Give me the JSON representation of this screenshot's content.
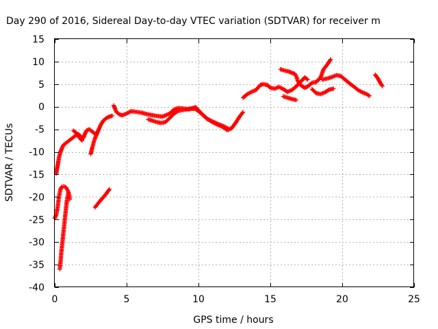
{
  "chart_data": {
    "type": "scatter",
    "title": "Day 290 of 2016, Sidereal Day-to-day VTEC variation (SDTVAR) for receiver m",
    "xlabel": "GPS time / hours",
    "ylabel": "SDTVAR / TECUs",
    "xlim": [
      0,
      25
    ],
    "ylim": [
      -40,
      15
    ],
    "xticks": [
      0,
      5,
      10,
      15,
      20,
      25
    ],
    "yticks": [
      -40,
      -35,
      -30,
      -25,
      -20,
      -15,
      -10,
      -5,
      0,
      5,
      10,
      15
    ],
    "grid": true,
    "marker": "plus",
    "color": "#ff0000",
    "series": [
      {
        "points": [
          [
            0.0,
            -24.7
          ],
          [
            0.1,
            -24.0
          ],
          [
            0.2,
            -22.3
          ],
          [
            0.3,
            -19.8
          ],
          [
            0.4,
            -18.3
          ],
          [
            0.5,
            -17.7
          ],
          [
            0.6,
            -17.6
          ],
          [
            0.7,
            -17.7
          ],
          [
            0.8,
            -18.0
          ],
          [
            0.9,
            -18.5
          ],
          [
            1.0,
            -19.5
          ],
          [
            1.05,
            -20.5
          ]
        ]
      },
      {
        "points": [
          [
            0.35,
            -36.0
          ],
          [
            0.4,
            -34.5
          ],
          [
            0.45,
            -32.5
          ],
          [
            0.5,
            -31.0
          ],
          [
            0.55,
            -29.5
          ],
          [
            0.6,
            -28.0
          ],
          [
            0.65,
            -26.5
          ],
          [
            0.7,
            -25.0
          ],
          [
            0.75,
            -23.5
          ],
          [
            0.8,
            -22.0
          ],
          [
            0.85,
            -20.8
          ],
          [
            0.9,
            -19.8
          ],
          [
            0.95,
            -19.0
          ]
        ]
      },
      {
        "points": [
          [
            2.8,
            -22.3
          ],
          [
            3.0,
            -21.5
          ],
          [
            3.2,
            -20.7
          ],
          [
            3.4,
            -20.0
          ],
          [
            3.6,
            -19.2
          ],
          [
            3.8,
            -18.3
          ]
        ]
      },
      {
        "points": [
          [
            0.1,
            -14.8
          ],
          [
            0.2,
            -13.0
          ],
          [
            0.3,
            -11.2
          ],
          [
            0.4,
            -10.0
          ],
          [
            0.5,
            -9.2
          ],
          [
            0.6,
            -8.5
          ],
          [
            0.8,
            -8.0
          ],
          [
            1.0,
            -7.5
          ],
          [
            1.2,
            -7.0
          ],
          [
            1.4,
            -6.5
          ],
          [
            1.6,
            -6.0
          ],
          [
            1.8,
            -6.5
          ],
          [
            1.9,
            -7.3
          ],
          [
            2.0,
            -6.8
          ],
          [
            2.1,
            -6.0
          ],
          [
            2.2,
            -5.3
          ],
          [
            2.4,
            -5.0
          ],
          [
            2.6,
            -5.5
          ],
          [
            2.8,
            -6.0
          ],
          [
            3.0,
            -5.5
          ]
        ]
      },
      {
        "points": [
          [
            1.3,
            -5.3
          ],
          [
            1.5,
            -5.8
          ],
          [
            1.7,
            -6.8
          ],
          [
            1.9,
            -7.5
          ]
        ]
      },
      {
        "points": [
          [
            2.5,
            -10.5
          ],
          [
            2.6,
            -9.2
          ],
          [
            2.7,
            -8.0
          ],
          [
            2.8,
            -7.0
          ],
          [
            3.0,
            -5.5
          ],
          [
            3.2,
            -4.0
          ],
          [
            3.4,
            -3.0
          ],
          [
            3.6,
            -2.5
          ],
          [
            3.8,
            -2.2
          ],
          [
            4.0,
            -2.0
          ]
        ]
      },
      {
        "points": [
          [
            4.1,
            0.3
          ],
          [
            4.2,
            -0.5
          ],
          [
            4.3,
            -1.2
          ],
          [
            4.5,
            -1.7
          ],
          [
            4.7,
            -1.9
          ],
          [
            5.0,
            -1.5
          ],
          [
            5.3,
            -1.0
          ],
          [
            5.6,
            -1.1
          ],
          [
            6.0,
            -1.3
          ],
          [
            6.5,
            -1.7
          ],
          [
            7.0,
            -2.0
          ],
          [
            7.5,
            -2.2
          ],
          [
            8.0,
            -1.5
          ],
          [
            8.3,
            -0.6
          ],
          [
            8.6,
            -0.3
          ],
          [
            9.0,
            -0.4
          ],
          [
            9.3,
            -0.6
          ],
          [
            9.6,
            -0.3
          ],
          [
            9.8,
            -0.1
          ],
          [
            10.0,
            -0.8
          ],
          [
            10.3,
            -1.8
          ],
          [
            10.6,
            -2.6
          ],
          [
            10.9,
            -3.3
          ],
          [
            11.2,
            -3.8
          ],
          [
            11.5,
            -4.2
          ],
          [
            11.8,
            -4.7
          ],
          [
            12.0,
            -5.2
          ],
          [
            12.3,
            -4.8
          ],
          [
            12.6,
            -3.5
          ],
          [
            12.9,
            -2.0
          ],
          [
            13.1,
            -1.2
          ]
        ]
      },
      {
        "points": [
          [
            6.5,
            -2.8
          ],
          [
            6.8,
            -3.1
          ],
          [
            7.1,
            -3.4
          ],
          [
            7.4,
            -3.6
          ],
          [
            7.7,
            -3.4
          ],
          [
            8.0,
            -2.5
          ],
          [
            8.3,
            -1.5
          ],
          [
            8.6,
            -0.9
          ],
          [
            9.0,
            -0.7
          ],
          [
            9.4,
            -0.4
          ],
          [
            9.8,
            -0.5
          ],
          [
            10.2,
            -1.5
          ],
          [
            10.6,
            -2.7
          ],
          [
            11.0,
            -3.3
          ],
          [
            11.4,
            -3.9
          ],
          [
            11.8,
            -4.4
          ],
          [
            12.1,
            -4.9
          ]
        ]
      },
      {
        "points": [
          [
            13.1,
            2.0
          ],
          [
            13.4,
            2.8
          ],
          [
            13.7,
            3.3
          ],
          [
            14.0,
            3.7
          ],
          [
            14.3,
            4.8
          ],
          [
            14.5,
            5.0
          ],
          [
            14.8,
            4.8
          ],
          [
            15.0,
            4.2
          ],
          [
            15.3,
            4.0
          ],
          [
            15.6,
            4.4
          ],
          [
            15.9,
            3.9
          ],
          [
            16.2,
            3.3
          ],
          [
            16.5,
            3.7
          ],
          [
            16.8,
            4.5
          ],
          [
            17.1,
            5.5
          ],
          [
            17.4,
            6.5
          ],
          [
            17.6,
            6.0
          ]
        ]
      },
      {
        "points": [
          [
            15.7,
            8.3
          ],
          [
            16.0,
            8.0
          ],
          [
            16.3,
            7.8
          ],
          [
            16.5,
            7.5
          ],
          [
            16.7,
            7.3
          ],
          [
            16.8,
            6.8
          ],
          [
            16.9,
            5.8
          ],
          [
            17.1,
            4.8
          ],
          [
            17.4,
            4.2
          ],
          [
            17.6,
            4.5
          ],
          [
            17.9,
            5.3
          ],
          [
            18.2,
            5.5
          ],
          [
            18.5,
            6.5
          ],
          [
            18.7,
            8.3
          ],
          [
            19.0,
            9.5
          ],
          [
            19.2,
            10.5
          ]
        ]
      },
      {
        "points": [
          [
            15.9,
            2.3
          ],
          [
            16.2,
            2.0
          ],
          [
            16.5,
            1.7
          ],
          [
            16.8,
            1.5
          ]
        ]
      },
      {
        "points": [
          [
            17.9,
            3.9
          ],
          [
            18.2,
            3.0
          ],
          [
            18.5,
            2.8
          ],
          [
            18.8,
            3.2
          ],
          [
            19.1,
            3.8
          ],
          [
            19.4,
            4.0
          ]
        ]
      },
      {
        "points": [
          [
            18.6,
            6.0
          ],
          [
            19.0,
            6.3
          ],
          [
            19.3,
            6.6
          ],
          [
            19.6,
            7.0
          ],
          [
            19.9,
            6.8
          ],
          [
            20.2,
            6.0
          ],
          [
            20.5,
            5.2
          ],
          [
            20.8,
            4.5
          ],
          [
            21.1,
            3.7
          ],
          [
            21.4,
            3.2
          ],
          [
            21.7,
            2.8
          ],
          [
            21.9,
            2.4
          ]
        ]
      },
      {
        "points": [
          [
            22.3,
            7.1
          ],
          [
            22.5,
            6.2
          ],
          [
            22.7,
            5.0
          ],
          [
            22.8,
            4.6
          ]
        ]
      }
    ]
  }
}
